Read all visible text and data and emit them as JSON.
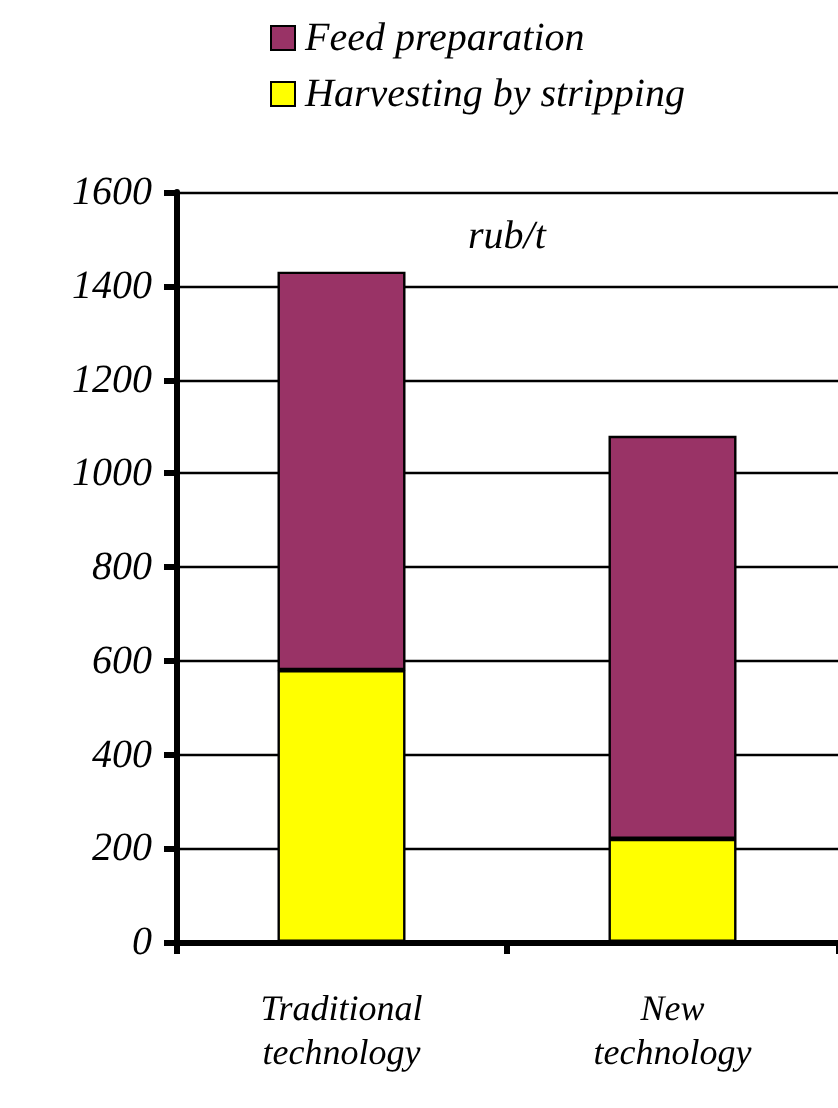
{
  "chart_data": {
    "type": "bar",
    "stacked": true,
    "categories": [
      "Traditional technology",
      "New technology"
    ],
    "series": [
      {
        "name": "Harvesting by stripping",
        "color": "#ffff00",
        "values": [
          580,
          220
        ]
      },
      {
        "name": "Feed preparation",
        "color": "#993366",
        "values": [
          850,
          860
        ]
      }
    ],
    "ylim": [
      0,
      1600
    ],
    "yticks": [
      0,
      200,
      400,
      600,
      800,
      1000,
      1200,
      1400,
      1600
    ],
    "grid": "y",
    "legend": "top",
    "annotations": [
      "rub/t"
    ]
  }
}
